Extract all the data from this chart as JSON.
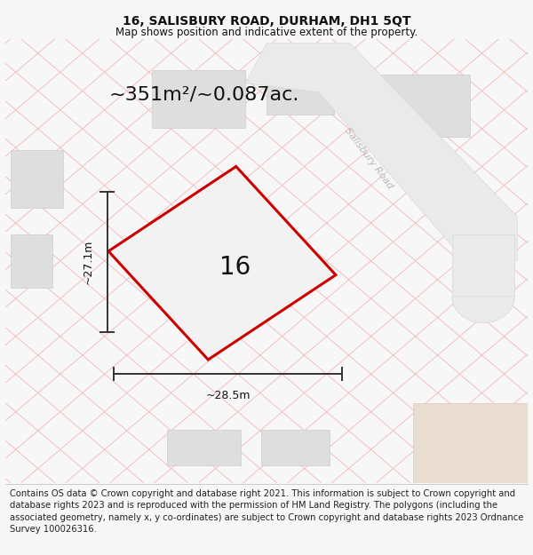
{
  "title": "16, SALISBURY ROAD, DURHAM, DH1 5QT",
  "subtitle": "Map shows position and indicative extent of the property.",
  "area_label": "~351m²/~0.087ac.",
  "number_label": "16",
  "dim_width_label": "~28.5m",
  "dim_height_label": "~27.1m",
  "footer_text": "Contains OS data © Crown copyright and database right 2021. This information is subject to Crown copyright and database rights 2023 and is reproduced with the permission of HM Land Registry. The polygons (including the associated geometry, namely x, y co-ordinates) are subject to Crown copyright and database rights 2023 Ordnance Survey 100026316.",
  "bg_color": "#f7f7f7",
  "map_bg": "#ffffff",
  "property_fill": "#f2f2f2",
  "property_edge": "#cc0000",
  "grid_line_color": "#f2b8b8",
  "building_color": "#dedede",
  "building_edge": "#cccccc",
  "road_fill": "#eaeaea",
  "road_edge": "#d8d8d8",
  "road_text_color": "#b8b8b8",
  "dim_color": "#333333",
  "title_fontsize": 10,
  "subtitle_fontsize": 8.5,
  "area_fontsize": 16,
  "number_fontsize": 20,
  "dim_fontsize": 9,
  "footer_fontsize": 7.2
}
